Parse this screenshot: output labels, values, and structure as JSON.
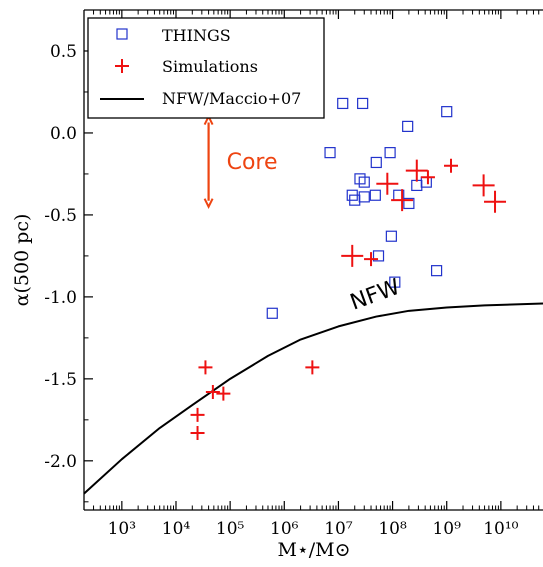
{
  "chart_data": {
    "type": "scatter",
    "xlabel": "M⋆/M⊙",
    "ylabel": "α(500 pc)",
    "xscale": "log",
    "xlim": [
      200,
      60000000000
    ],
    "ylim": [
      -2.3,
      0.75
    ],
    "x_ticks": [
      {
        "value": 1000,
        "label": "10³"
      },
      {
        "value": 10000,
        "label": "10⁴"
      },
      {
        "value": 100000,
        "label": "10⁵"
      },
      {
        "value": 1000000,
        "label": "10⁶"
      },
      {
        "value": 10000000,
        "label": "10⁷"
      },
      {
        "value": 100000000,
        "label": "10⁸"
      },
      {
        "value": 1000000000,
        "label": "10⁹"
      },
      {
        "value": 10000000000,
        "label": "10¹⁰"
      }
    ],
    "y_ticks": [
      {
        "value": 0.5,
        "label": "0.5"
      },
      {
        "value": 0.0,
        "label": "0.0"
      },
      {
        "value": -0.5,
        "label": "-0.5"
      },
      {
        "value": -1.0,
        "label": "-1.0"
      },
      {
        "value": -1.5,
        "label": "-1.5"
      },
      {
        "value": -2.0,
        "label": "-2.0"
      }
    ],
    "legend_position": "top-left",
    "colors": {
      "things": "#2233cc",
      "simulations": "#ee1111",
      "nfw": "#000000",
      "core": "#ee4411"
    },
    "series": [
      {
        "name": "THINGS",
        "marker": "open-square",
        "points": [
          [
            600000,
            -1.1
          ],
          [
            7000000,
            -0.12
          ],
          [
            12000000,
            0.18
          ],
          [
            18000000,
            -0.38
          ],
          [
            20000000,
            -0.41
          ],
          [
            25000000,
            -0.28
          ],
          [
            28000000,
            0.18
          ],
          [
            30000000,
            -0.39
          ],
          [
            30000000,
            -0.3
          ],
          [
            48000000,
            -0.38
          ],
          [
            50000000,
            -0.18
          ],
          [
            55000000,
            -0.75
          ],
          [
            90000000,
            -0.12
          ],
          [
            95000000,
            -0.63
          ],
          [
            110000000,
            -0.91
          ],
          [
            130000000,
            -0.38
          ],
          [
            190000000,
            0.04
          ],
          [
            200000000,
            -0.43
          ],
          [
            280000000,
            -0.32
          ],
          [
            420000000,
            -0.3
          ],
          [
            650000000,
            -0.84
          ],
          [
            1000000000,
            0.13
          ]
        ]
      },
      {
        "name": "Simulations",
        "marker": "plus",
        "points": [
          {
            "x": 25000,
            "y": -1.72,
            "size": 7
          },
          {
            "x": 25000,
            "y": -1.83,
            "size": 7
          },
          {
            "x": 35000,
            "y": -1.43,
            "size": 7
          },
          {
            "x": 48000,
            "y": -1.58,
            "size": 7
          },
          {
            "x": 75000,
            "y": -1.59,
            "size": 7
          },
          {
            "x": 3300000,
            "y": -1.43,
            "size": 7
          },
          {
            "x": 18000000,
            "y": -0.75,
            "size": 11
          },
          {
            "x": 40000000,
            "y": -0.77,
            "size": 7
          },
          {
            "x": 80000000,
            "y": -0.31,
            "size": 11
          },
          {
            "x": 150000000,
            "y": -0.41,
            "size": 11
          },
          {
            "x": 280000000,
            "y": -0.23,
            "size": 11
          },
          {
            "x": 450000000,
            "y": -0.27,
            "size": 7
          },
          {
            "x": 1200000000,
            "y": -0.2,
            "size": 7
          },
          {
            "x": 4800000000,
            "y": -0.32,
            "size": 11
          },
          {
            "x": 7800000000,
            "y": -0.42,
            "size": 11
          }
        ]
      },
      {
        "name": "NFW/Maccio+07",
        "type": "line",
        "x": [
          200,
          1000,
          5000,
          20000,
          100000,
          500000,
          2000000,
          10000000,
          50000000,
          200000000,
          1000000000,
          5000000000,
          60000000000
        ],
        "y": [
          -2.2,
          -1.99,
          -1.8,
          -1.66,
          -1.5,
          -1.36,
          -1.26,
          -1.18,
          -1.12,
          -1.085,
          -1.065,
          -1.052,
          -1.04
        ]
      }
    ],
    "annotations": [
      {
        "text": "Core",
        "x": 40000,
        "y": -0.17,
        "arrow_from": -0.45,
        "arrow_to": 0.1
      },
      {
        "text": "NFW",
        "x": 19000000,
        "y": -1.08,
        "rotation": -20
      }
    ]
  }
}
